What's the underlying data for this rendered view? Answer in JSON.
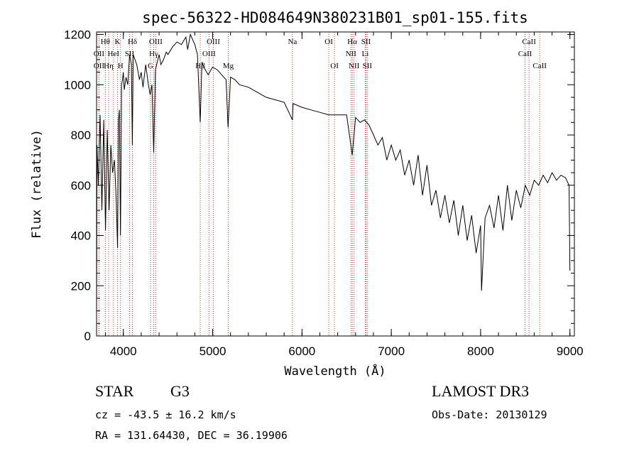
{
  "chart_data": {
    "type": "line",
    "title": "spec-56322-HD084649N380231B01_sp01-155.fits",
    "xlabel": "Wavelength (Å)",
    "ylabel": "Flux (relative)",
    "xlim": [
      3700,
      9050
    ],
    "ylim": [
      0,
      1210
    ],
    "xticks": [
      4000,
      5000,
      6000,
      7000,
      8000,
      9000
    ],
    "yticks": [
      0,
      200,
      400,
      600,
      800,
      1000,
      1200
    ],
    "series": [
      {
        "name": "flux",
        "x": [
          3700,
          3705,
          3720,
          3740,
          3760,
          3780,
          3800,
          3820,
          3840,
          3860,
          3880,
          3900,
          3920,
          3935,
          3945,
          3955,
          3968,
          3980,
          3990,
          4000,
          4010,
          4030,
          4050,
          4070,
          4090,
          4101,
          4110,
          4130,
          4150,
          4180,
          4200,
          4220,
          4250,
          4280,
          4300,
          4320,
          4340,
          4360,
          4380,
          4400,
          4420,
          4450,
          4480,
          4500,
          4550,
          4600,
          4650,
          4700,
          4720,
          4750,
          4800,
          4830,
          4861,
          4880,
          4900,
          4950,
          5000,
          5050,
          5100,
          5150,
          5172,
          5200,
          5250,
          5300,
          5400,
          5500,
          5600,
          5700,
          5800,
          5893,
          5900,
          6000,
          6100,
          6200,
          6300,
          6400,
          6500,
          6563,
          6600,
          6650,
          6700,
          6750,
          6800,
          6850,
          6900,
          6950,
          7000,
          7050,
          7100,
          7150,
          7200,
          7250,
          7300,
          7350,
          7400,
          7450,
          7500,
          7550,
          7600,
          7650,
          7700,
          7750,
          7800,
          7850,
          7900,
          7950,
          8000,
          8010,
          8050,
          8100,
          8150,
          8200,
          8250,
          8300,
          8350,
          8400,
          8450,
          8500,
          8550,
          8600,
          8650,
          8700,
          8750,
          8800,
          8850,
          8900,
          8950,
          8990,
          9000
        ],
        "values": [
          80,
          760,
          600,
          880,
          500,
          860,
          420,
          820,
          500,
          760,
          650,
          700,
          540,
          350,
          860,
          900,
          400,
          1000,
          1020,
          1050,
          980,
          1030,
          1000,
          1120,
          1080,
          760,
          1120,
          1100,
          1080,
          1020,
          1050,
          990,
          1080,
          1000,
          960,
          1000,
          730,
          1060,
          1090,
          1120,
          1080,
          1100,
          1130,
          1120,
          1150,
          1170,
          1160,
          1190,
          1140,
          1200,
          1160,
          1120,
          850,
          1090,
          1070,
          1040,
          1070,
          1060,
          1040,
          1020,
          830,
          1030,
          1020,
          1000,
          990,
          970,
          950,
          940,
          930,
          860,
          925,
          910,
          900,
          890,
          880,
          880,
          880,
          720,
          870,
          850,
          860,
          840,
          800,
          760,
          790,
          700,
          760,
          700,
          740,
          640,
          700,
          600,
          720,
          560,
          680,
          520,
          580,
          470,
          560,
          450,
          540,
          400,
          520,
          380,
          480,
          330,
          440,
          180,
          470,
          520,
          430,
          560,
          420,
          600,
          460,
          580,
          510,
          600,
          560,
          620,
          600,
          640,
          610,
          650,
          620,
          640,
          630,
          600,
          260
        ]
      }
    ],
    "spectral_lines": [
      {
        "label": "Hθ",
        "x": 3798,
        "row": 1
      },
      {
        "label": "K",
        "x": 3934,
        "row": 1
      },
      {
        "label": "Hδ",
        "x": 4102,
        "row": 1
      },
      {
        "label": "OIII",
        "x": 4363,
        "row": 1
      },
      {
        "label": "OIII",
        "x": 5007,
        "row": 1
      },
      {
        "label": "Na",
        "x": 5893,
        "row": 1
      },
      {
        "label": "OI",
        "x": 6300,
        "row": 1
      },
      {
        "label": "Hα",
        "x": 6563,
        "row": 1
      },
      {
        "label": "SII",
        "x": 6717,
        "row": 1
      },
      {
        "label": "CaII",
        "x": 8542,
        "row": 1
      },
      {
        "label": "OII",
        "x": 3727,
        "row": 2
      },
      {
        "label": "HeI",
        "x": 3889,
        "row": 2
      },
      {
        "label": "SII",
        "x": 4069,
        "row": 2
      },
      {
        "label": "Hγ",
        "x": 4340,
        "row": 2
      },
      {
        "label": "OIII",
        "x": 4959,
        "row": 2
      },
      {
        "label": "NII",
        "x": 6548,
        "row": 2
      },
      {
        "label": "Li",
        "x": 6708,
        "row": 2
      },
      {
        "label": "CaII",
        "x": 8498,
        "row": 2
      },
      {
        "label": "OII",
        "x": 3727,
        "row": 3
      },
      {
        "label": "Hη",
        "x": 3835,
        "row": 3
      },
      {
        "label": "H",
        "x": 3968,
        "row": 3
      },
      {
        "label": "G",
        "x": 4304,
        "row": 3
      },
      {
        "label": "Hβ",
        "x": 4861,
        "row": 3
      },
      {
        "label": "Mg",
        "x": 5175,
        "row": 3
      },
      {
        "label": "OI",
        "x": 6364,
        "row": 3
      },
      {
        "label": "NII",
        "x": 6583,
        "row": 3
      },
      {
        "label": "SII",
        "x": 6731,
        "row": 3
      },
      {
        "label": "CaII",
        "x": 8662,
        "row": 3
      }
    ],
    "grid": false,
    "colors": {
      "line": "#000000",
      "marker_lines": "#c0392b",
      "axes": "#000000"
    }
  },
  "info": {
    "class": "STAR",
    "subclass": "G3",
    "survey": "LAMOST DR3",
    "redshift": "cz = -43.5 ± 16.2 km/s",
    "obs_date": "Obs-Date: 20130129",
    "coords": "RA = 131.64430, DEC =  36.19906"
  }
}
